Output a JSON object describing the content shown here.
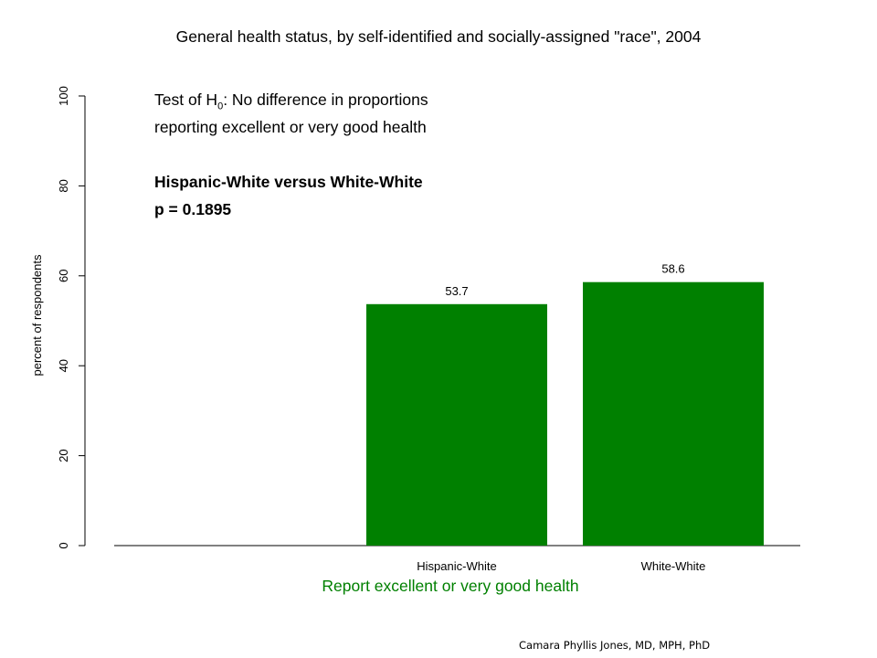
{
  "chart_data": {
    "type": "bar",
    "title": "General health status, by self-identified and socially-assigned \"race\", 2004",
    "categories": [
      "",
      "Hispanic-White",
      "White-White"
    ],
    "values": [
      null,
      53.7,
      58.6
    ],
    "data_labels": [
      "",
      "53.7",
      "58.6"
    ],
    "ylabel": "percent of respondents",
    "xlabel": "Report excellent or very good health",
    "ylim": [
      0,
      100
    ],
    "yticks": [
      0,
      20,
      40,
      60,
      80,
      100
    ],
    "grid": false,
    "bar_color": "#008000",
    "xlabel_color": "#008000",
    "annotations": {
      "test_prefix": "Test of H",
      "test_subscript": "0",
      "test_suffix": ":  No difference in proportions",
      "test_line2": "reporting excellent or very good health",
      "comparison": "Hispanic-White versus White-White",
      "p_value": "p = 0.1895"
    }
  },
  "footer": {
    "credit": "Camara Phyllis Jones, MD, MPH, PhD"
  }
}
